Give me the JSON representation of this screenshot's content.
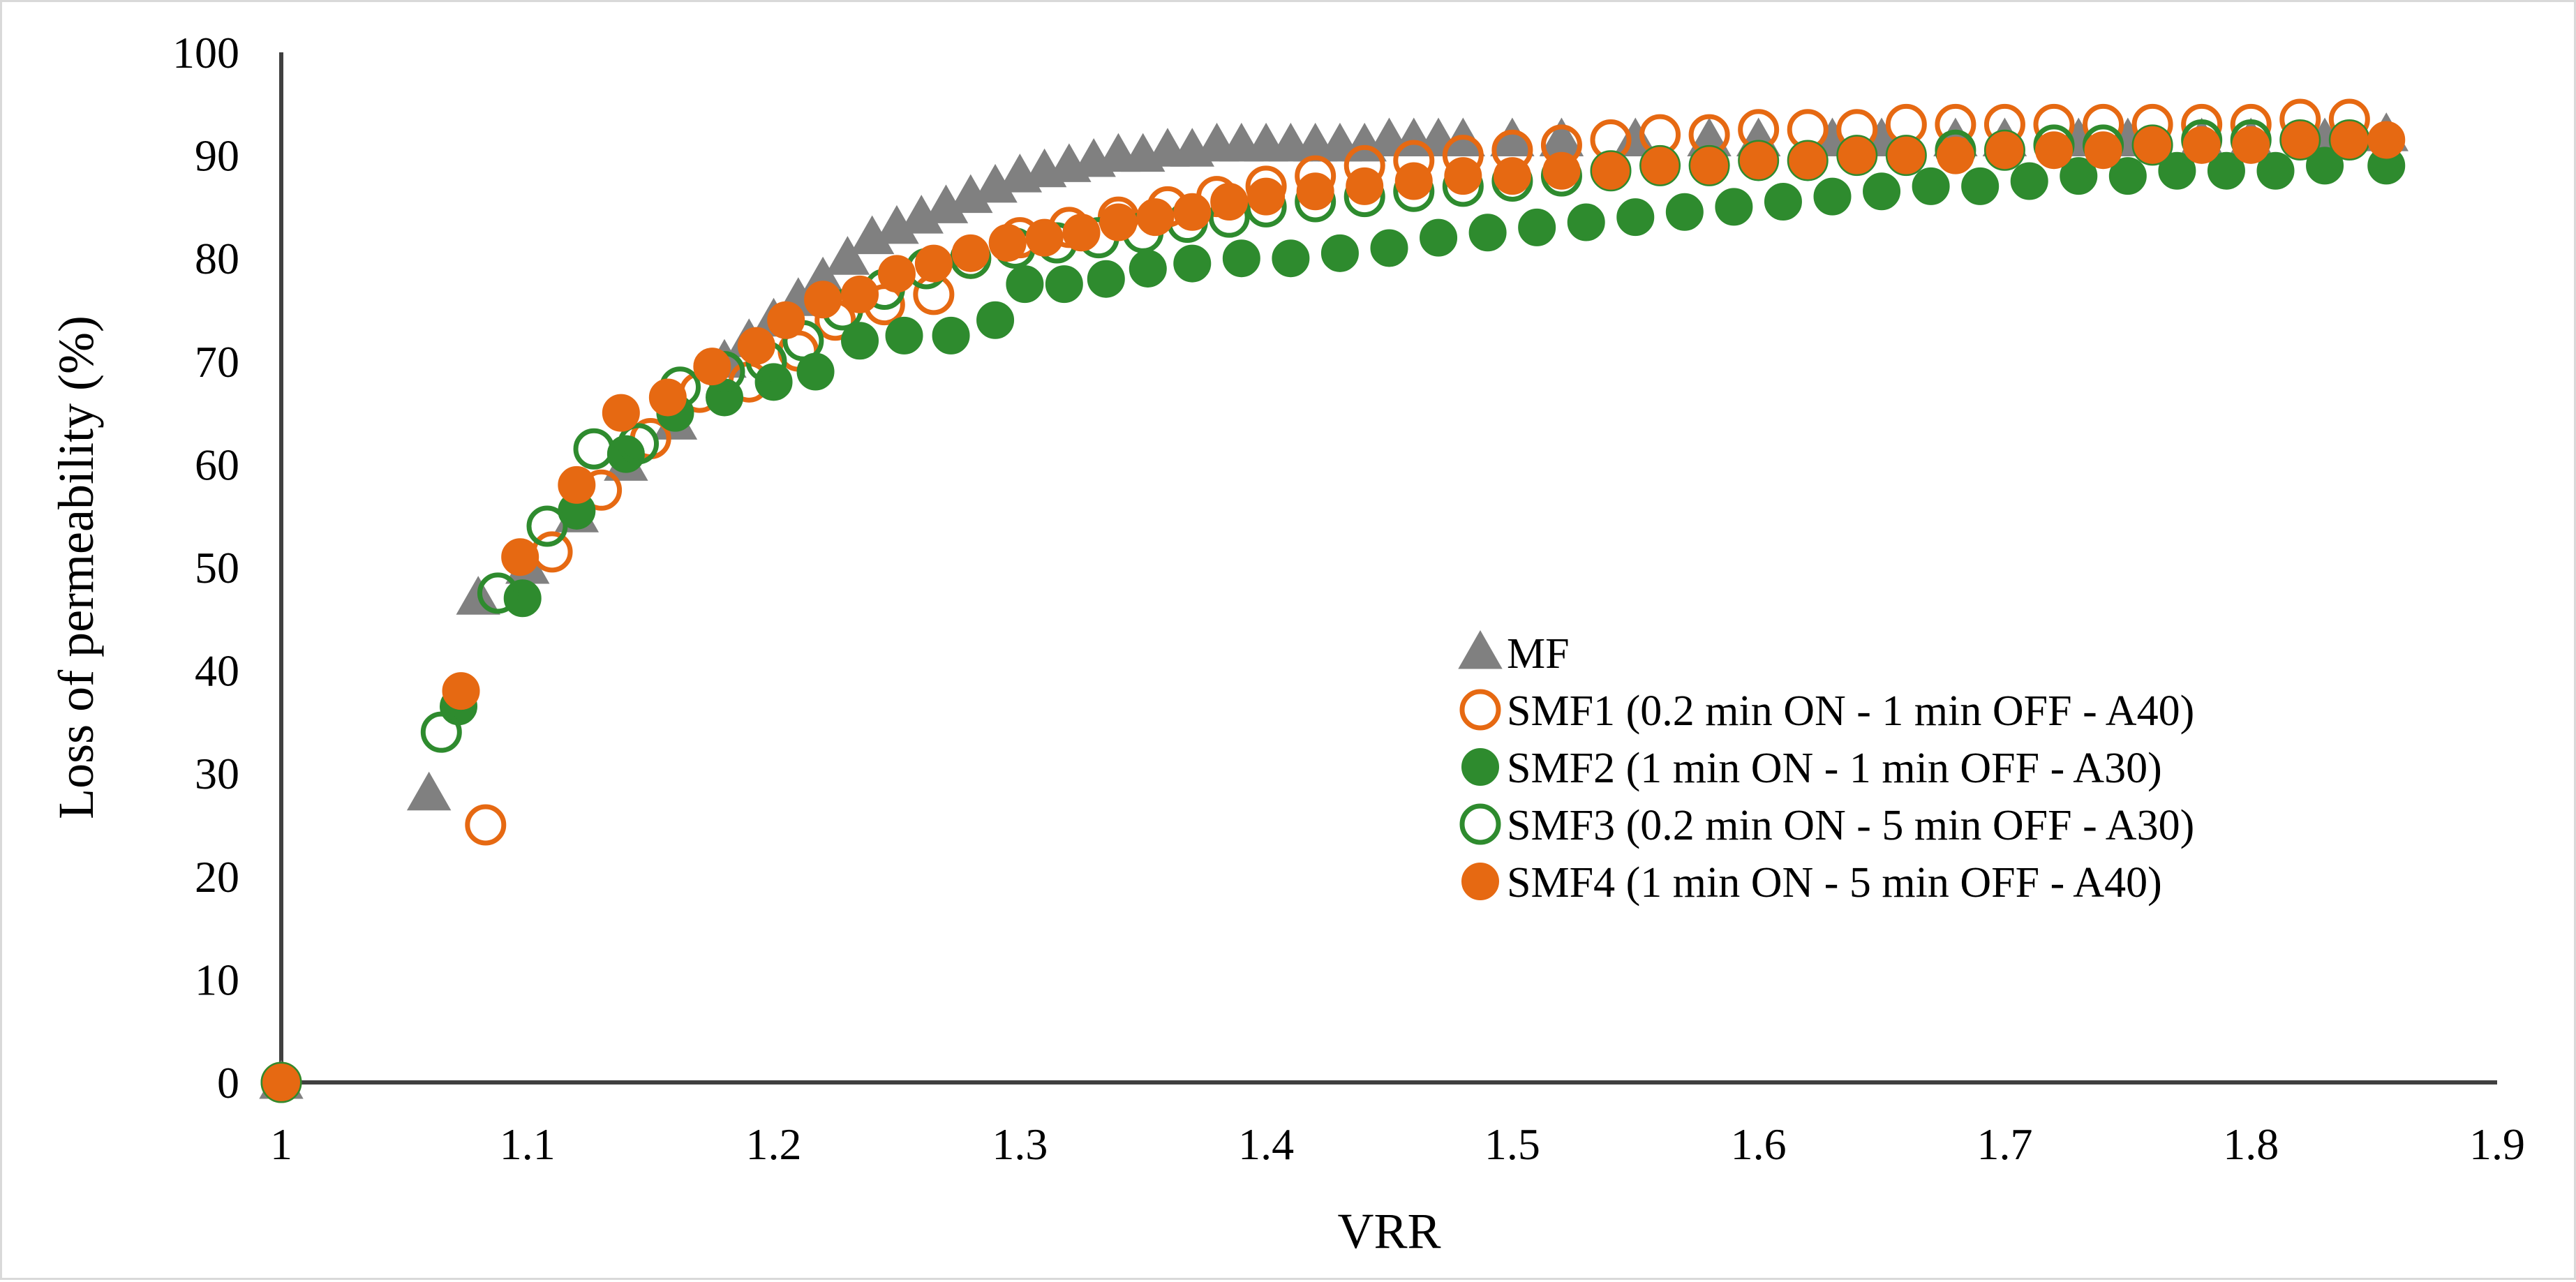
{
  "chart_data": {
    "type": "scatter",
    "title": "",
    "xlabel": "VRR",
    "ylabel": "Loss of permeability (%)",
    "xlim": [
      1,
      1.9
    ],
    "ylim": [
      0,
      100
    ],
    "x_ticks": [
      "1",
      "1.1",
      "1.2",
      "1.3",
      "1.4",
      "1.5",
      "1.6",
      "1.7",
      "1.8",
      "1.9"
    ],
    "y_ticks": [
      "0",
      "10",
      "20",
      "30",
      "40",
      "50",
      "60",
      "70",
      "80",
      "90",
      "100"
    ],
    "grid": false,
    "legend_position": "center-right",
    "series": [
      {
        "name": "MF",
        "marker": "triangle",
        "filled": true,
        "color": "#808080",
        "x": [
          1.0,
          1.06,
          1.08,
          1.1,
          1.12,
          1.14,
          1.16,
          1.18,
          1.19,
          1.2,
          1.21,
          1.22,
          1.23,
          1.24,
          1.25,
          1.26,
          1.27,
          1.28,
          1.29,
          1.3,
          1.31,
          1.32,
          1.33,
          1.34,
          1.35,
          1.36,
          1.37,
          1.38,
          1.39,
          1.4,
          1.41,
          1.42,
          1.43,
          1.44,
          1.45,
          1.46,
          1.47,
          1.48,
          1.5,
          1.52,
          1.55,
          1.58,
          1.6,
          1.63,
          1.65,
          1.68,
          1.7,
          1.73,
          1.75,
          1.78,
          1.8,
          1.83,
          1.855
        ],
        "y": [
          0,
          28,
          47,
          50,
          55,
          60,
          64,
          70,
          72,
          74,
          76,
          78,
          80,
          82,
          83,
          84,
          85,
          86,
          87,
          88,
          88.5,
          89,
          89.5,
          90,
          90,
          90.5,
          90.5,
          91,
          91,
          91,
          91,
          91,
          91,
          91,
          91.5,
          91.5,
          91.5,
          91.5,
          91.5,
          91.5,
          91.5,
          91.5,
          91.5,
          91.5,
          91.5,
          91.5,
          91.5,
          91.5,
          91.5,
          91.5,
          91.5,
          91.5,
          92
        ]
      },
      {
        "name": "SMF1 (0.2 min ON - 1 min OFF - A40)",
        "marker": "circle",
        "filled": false,
        "color": "#E66912",
        "x": [
          1.0,
          1.083,
          1.11,
          1.13,
          1.15,
          1.17,
          1.19,
          1.21,
          1.225,
          1.245,
          1.265,
          1.28,
          1.3,
          1.32,
          1.34,
          1.36,
          1.38,
          1.4,
          1.42,
          1.44,
          1.46,
          1.48,
          1.5,
          1.52,
          1.54,
          1.56,
          1.58,
          1.6,
          1.62,
          1.64,
          1.66,
          1.68,
          1.7,
          1.72,
          1.74,
          1.76,
          1.78,
          1.8,
          1.82,
          1.84
        ],
        "y": [
          0,
          25,
          51.5,
          57.5,
          62.5,
          67,
          68,
          71,
          74,
          75.5,
          76.5,
          80,
          82,
          83,
          84,
          85,
          86,
          87,
          88,
          89,
          89.5,
          90,
          90.5,
          91,
          91.5,
          92,
          92,
          92.5,
          92.5,
          92.5,
          93,
          93,
          93,
          93,
          93,
          93,
          93,
          93,
          93.5,
          93.5
        ]
      },
      {
        "name": "SMF2 (1 min ON - 1 min OFF - A30)",
        "marker": "circle",
        "filled": true,
        "color": "#2E8B2E",
        "x": [
          1.0,
          1.072,
          1.098,
          1.12,
          1.14,
          1.16,
          1.18,
          1.2,
          1.217,
          1.235,
          1.253,
          1.272,
          1.29,
          1.302,
          1.318,
          1.335,
          1.352,
          1.37,
          1.39,
          1.41,
          1.43,
          1.45,
          1.47,
          1.49,
          1.51,
          1.53,
          1.55,
          1.57,
          1.59,
          1.61,
          1.63,
          1.65,
          1.67,
          1.69,
          1.71,
          1.73,
          1.75,
          1.77,
          1.79,
          1.81,
          1.83,
          1.855
        ],
        "y": [
          0,
          36.5,
          47,
          55.5,
          61,
          65,
          66.5,
          68,
          69,
          72,
          72.5,
          72.5,
          74,
          77.5,
          77.5,
          78,
          79,
          79.5,
          80,
          80,
          80.5,
          81,
          82,
          82.5,
          83,
          83.5,
          84,
          84.5,
          85,
          85.5,
          86,
          86.5,
          87,
          87,
          87.5,
          88,
          88,
          88.5,
          88.5,
          88.5,
          89,
          89
        ]
      },
      {
        "name": "SMF3 (0.2 min ON - 5 min OFF - A30)",
        "marker": "circle",
        "filled": false,
        "color": "#2E8B2E",
        "x": [
          1.0,
          1.065,
          1.088,
          1.108,
          1.127,
          1.145,
          1.162,
          1.18,
          1.197,
          1.212,
          1.228,
          1.245,
          1.262,
          1.28,
          1.298,
          1.315,
          1.332,
          1.35,
          1.368,
          1.385,
          1.4,
          1.42,
          1.44,
          1.46,
          1.48,
          1.5,
          1.52,
          1.54,
          1.56,
          1.58,
          1.6,
          1.62,
          1.64,
          1.66,
          1.68,
          1.7,
          1.72,
          1.74,
          1.76,
          1.78,
          1.8,
          1.82,
          1.84
        ],
        "y": [
          0,
          34,
          47.5,
          54,
          61.5,
          62,
          67.5,
          69,
          70,
          72,
          75,
          77,
          79,
          80,
          81,
          81.5,
          82,
          82.5,
          83.5,
          84,
          85,
          85.5,
          86,
          86.5,
          87,
          87.5,
          88,
          88.5,
          89,
          89,
          89.5,
          89.5,
          90,
          90,
          90.5,
          90.5,
          91,
          91,
          91,
          91.5,
          91.5,
          91.5,
          91.5
        ]
      },
      {
        "name": "SMF4 (1 min ON - 5 min OFF - A40)",
        "marker": "circle",
        "filled": true,
        "color": "#E66912",
        "x": [
          1.0,
          1.073,
          1.097,
          1.12,
          1.138,
          1.157,
          1.175,
          1.193,
          1.205,
          1.22,
          1.235,
          1.25,
          1.265,
          1.28,
          1.295,
          1.31,
          1.325,
          1.34,
          1.355,
          1.37,
          1.385,
          1.4,
          1.42,
          1.44,
          1.46,
          1.48,
          1.5,
          1.52,
          1.54,
          1.56,
          1.58,
          1.6,
          1.62,
          1.64,
          1.66,
          1.68,
          1.7,
          1.72,
          1.74,
          1.76,
          1.78,
          1.8,
          1.82,
          1.84,
          1.855
        ],
        "y": [
          0,
          38,
          51,
          58,
          65,
          66.5,
          69.5,
          71.5,
          74,
          76,
          76.5,
          78.5,
          79.5,
          80.5,
          81.5,
          82,
          82.5,
          83.5,
          84,
          84.5,
          85.5,
          86,
          86.5,
          87,
          87.5,
          88,
          88,
          88.5,
          88.5,
          89,
          89,
          89.5,
          89.5,
          90,
          90,
          90,
          90.5,
          90.5,
          90.5,
          91,
          91,
          91,
          91.5,
          91.5,
          91.5
        ]
      }
    ]
  }
}
